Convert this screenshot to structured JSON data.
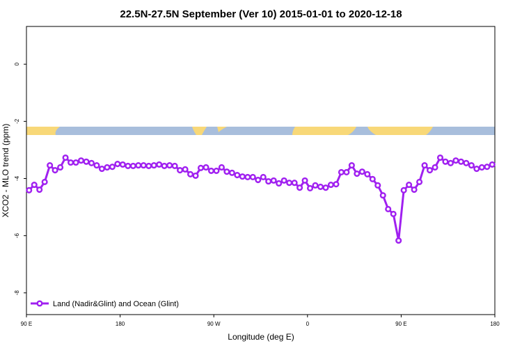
{
  "chart_data": {
    "type": "line",
    "title": "22.5N-27.5N September (Ver 10)   2015-01-01 to 2020-12-18",
    "x_label": "Longitude (deg E)",
    "y_label": "XCO2 - MLO trend (ppm)",
    "x": [
      92.5,
      97.5,
      102.5,
      107.5,
      112.5,
      117.5,
      122.5,
      127.5,
      132.5,
      137.5,
      142.5,
      147.5,
      152.5,
      157.5,
      162.5,
      167.5,
      172.5,
      177.5,
      182.5,
      187.5,
      192.5,
      197.5,
      202.5,
      207.5,
      212.5,
      217.5,
      222.5,
      227.5,
      232.5,
      237.5,
      242.5,
      247.5,
      252.5,
      257.5,
      262.5,
      267.5,
      272.5,
      277.5,
      282.5,
      287.5,
      292.5,
      297.5,
      302.5,
      307.5,
      312.5,
      317.5,
      322.5,
      327.5,
      332.5,
      337.5,
      342.5,
      347.5,
      352.5,
      357.5,
      362.5,
      367.5,
      372.5,
      377.5,
      382.5,
      387.5,
      392.5,
      397.5,
      402.5,
      407.5,
      412.5,
      417.5,
      422.5,
      427.5,
      432.5,
      437.5,
      442.5,
      447.5,
      452.5,
      457.5,
      462.5,
      467.5,
      472.5,
      477.5,
      482.5,
      487.5,
      492.5,
      497.5,
      502.5,
      507.5,
      512.5,
      517.5,
      522.5,
      527.5,
      532.5,
      537.5
    ],
    "series": [
      {
        "name": "Land (Nadir&Glint) and Ocean (Glint)",
        "color": "#a020f0",
        "values": [
          -4.41,
          -4.22,
          -4.39,
          -4.12,
          -3.54,
          -3.71,
          -3.61,
          -3.27,
          -3.44,
          -3.44,
          -3.37,
          -3.41,
          -3.46,
          -3.54,
          -3.66,
          -3.61,
          -3.59,
          -3.49,
          -3.51,
          -3.56,
          -3.56,
          -3.54,
          -3.54,
          -3.56,
          -3.54,
          -3.51,
          -3.56,
          -3.54,
          -3.56,
          -3.71,
          -3.68,
          -3.85,
          -3.9,
          -3.63,
          -3.61,
          -3.73,
          -3.73,
          -3.61,
          -3.76,
          -3.8,
          -3.88,
          -3.93,
          -3.95,
          -3.95,
          -4.05,
          -3.95,
          -4.1,
          -4.07,
          -4.17,
          -4.07,
          -4.15,
          -4.15,
          -4.32,
          -4.07,
          -4.34,
          -4.24,
          -4.29,
          -4.32,
          -4.22,
          -4.2,
          -3.78,
          -3.78,
          -3.54,
          -3.83,
          -3.76,
          -3.85,
          -4.02,
          -4.24,
          -4.59,
          -5.07,
          -5.24,
          -6.17,
          -4.41,
          -4.22,
          -4.39,
          -4.12,
          -3.54,
          -3.71,
          -3.61,
          -3.27,
          -3.41,
          -3.46,
          -3.37,
          -3.41,
          -3.46,
          -3.54,
          -3.66,
          -3.61,
          -3.59,
          -3.51
        ]
      }
    ],
    "xlim": [
      90,
      540
    ],
    "xticks": [
      {
        "value": 90,
        "label": "90 E"
      },
      180,
      {
        "value": 270,
        "label": "90 W"
      },
      0,
      {
        "value": 450,
        "label": "90 E"
      },
      180
    ],
    "ylim": [
      -8.76,
      1.32
    ],
    "yticks": [
      0,
      -2,
      -4,
      -6,
      -8
    ],
    "legend": "bottom-left"
  }
}
